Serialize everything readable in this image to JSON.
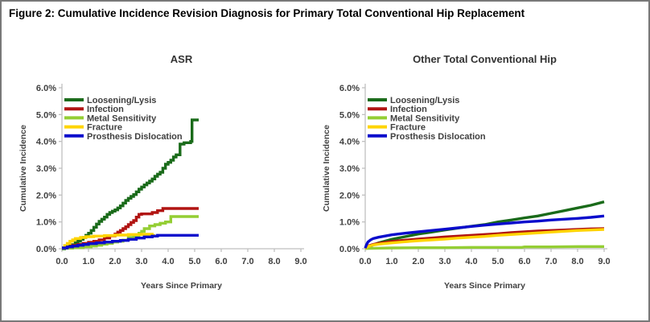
{
  "figure": {
    "title": "Figure 2: Cumulative Incidence Revision Diagnosis for Primary Total Conventional Hip Replacement"
  },
  "colors": {
    "axis": "#bfbfbf",
    "text": "#404040",
    "border": "#787878",
    "loosening_lysis": "#1a6b1a",
    "infection": "#b11412",
    "metal_sensitivity": "#94ce34",
    "fracture": "#ffd400",
    "prosthesis_dislocation": "#0a0ccc"
  },
  "chart_data": [
    {
      "type": "line",
      "interp": "step",
      "title": "ASR",
      "xlabel": "Years Since Primary",
      "ylabel": "Cumulative Incidence",
      "xlim": [
        0,
        9
      ],
      "ylim": [
        0,
        6
      ],
      "grid": false,
      "legend_position": "top-left",
      "xticks": [
        {
          "v": 0,
          "label": "0.0"
        },
        {
          "v": 1,
          "label": "1.0"
        },
        {
          "v": 2,
          "label": "2.0"
        },
        {
          "v": 3,
          "label": "3.0"
        },
        {
          "v": 4,
          "label": "4.0"
        },
        {
          "v": 5,
          "label": "5.0"
        },
        {
          "v": 6,
          "label": "6.0"
        },
        {
          "v": 7,
          "label": "7.0"
        },
        {
          "v": 8,
          "label": "8.0"
        },
        {
          "v": 9,
          "label": "9.0"
        }
      ],
      "yticks": [
        {
          "v": 0,
          "label": "0.0%"
        },
        {
          "v": 1,
          "label": "1.0%"
        },
        {
          "v": 2,
          "label": "2.0%"
        },
        {
          "v": 3,
          "label": "3.0%"
        },
        {
          "v": 4,
          "label": "4.0%"
        },
        {
          "v": 5,
          "label": "5.0%"
        },
        {
          "v": 6,
          "label": "6.0%"
        }
      ],
      "series": [
        {
          "name": "Loosening/Lysis",
          "color": "#1a6b1a",
          "points": [
            [
              0,
              0
            ],
            [
              0.1,
              0.05
            ],
            [
              0.2,
              0.1
            ],
            [
              0.35,
              0.15
            ],
            [
              0.5,
              0.22
            ],
            [
              0.6,
              0.28
            ],
            [
              0.7,
              0.35
            ],
            [
              0.8,
              0.42
            ],
            [
              0.9,
              0.5
            ],
            [
              1.0,
              0.58
            ],
            [
              1.1,
              0.68
            ],
            [
              1.2,
              0.8
            ],
            [
              1.3,
              0.92
            ],
            [
              1.4,
              1.02
            ],
            [
              1.5,
              1.1
            ],
            [
              1.6,
              1.18
            ],
            [
              1.7,
              1.28
            ],
            [
              1.8,
              1.35
            ],
            [
              1.9,
              1.4
            ],
            [
              2.0,
              1.45
            ],
            [
              2.1,
              1.52
            ],
            [
              2.2,
              1.6
            ],
            [
              2.3,
              1.7
            ],
            [
              2.4,
              1.8
            ],
            [
              2.5,
              1.88
            ],
            [
              2.6,
              1.95
            ],
            [
              2.7,
              2.02
            ],
            [
              2.8,
              2.12
            ],
            [
              2.9,
              2.22
            ],
            [
              3.0,
              2.3
            ],
            [
              3.1,
              2.38
            ],
            [
              3.2,
              2.45
            ],
            [
              3.3,
              2.52
            ],
            [
              3.4,
              2.6
            ],
            [
              3.5,
              2.7
            ],
            [
              3.6,
              2.78
            ],
            [
              3.7,
              2.85
            ],
            [
              3.8,
              3.0
            ],
            [
              3.9,
              3.15
            ],
            [
              4.0,
              3.22
            ],
            [
              4.1,
              3.3
            ],
            [
              4.2,
              3.42
            ],
            [
              4.3,
              3.5
            ],
            [
              4.45,
              3.9
            ],
            [
              4.6,
              3.95
            ],
            [
              4.85,
              4.0
            ],
            [
              4.9,
              4.8
            ],
            [
              5.15,
              4.8
            ]
          ]
        },
        {
          "name": "Infection",
          "color": "#b11412",
          "points": [
            [
              0,
              0.03
            ],
            [
              0.2,
              0.08
            ],
            [
              0.4,
              0.12
            ],
            [
              0.6,
              0.16
            ],
            [
              0.8,
              0.2
            ],
            [
              1.0,
              0.24
            ],
            [
              1.2,
              0.28
            ],
            [
              1.4,
              0.33
            ],
            [
              1.6,
              0.4
            ],
            [
              1.8,
              0.48
            ],
            [
              2.0,
              0.55
            ],
            [
              2.1,
              0.62
            ],
            [
              2.2,
              0.68
            ],
            [
              2.3,
              0.75
            ],
            [
              2.4,
              0.82
            ],
            [
              2.5,
              0.9
            ],
            [
              2.6,
              0.98
            ],
            [
              2.7,
              1.05
            ],
            [
              2.8,
              1.18
            ],
            [
              2.9,
              1.28
            ],
            [
              3.0,
              1.3
            ],
            [
              3.4,
              1.35
            ],
            [
              3.6,
              1.42
            ],
            [
              3.8,
              1.5
            ],
            [
              5.15,
              1.5
            ]
          ]
        },
        {
          "name": "Metal Sensitivity",
          "color": "#94ce34",
          "points": [
            [
              0,
              0.02
            ],
            [
              0.4,
              0.04
            ],
            [
              0.8,
              0.07
            ],
            [
              1.1,
              0.1
            ],
            [
              1.3,
              0.13
            ],
            [
              1.5,
              0.17
            ],
            [
              1.7,
              0.2
            ],
            [
              1.9,
              0.25
            ],
            [
              2.1,
              0.28
            ],
            [
              2.3,
              0.32
            ],
            [
              2.5,
              0.42
            ],
            [
              2.7,
              0.5
            ],
            [
              2.9,
              0.58
            ],
            [
              3.0,
              0.65
            ],
            [
              3.1,
              0.75
            ],
            [
              3.3,
              0.85
            ],
            [
              3.5,
              0.9
            ],
            [
              3.7,
              0.95
            ],
            [
              3.9,
              1.0
            ],
            [
              4.1,
              1.2
            ],
            [
              5.15,
              1.2
            ]
          ]
        },
        {
          "name": "Fracture",
          "color": "#ffd400",
          "points": [
            [
              0,
              0.03
            ],
            [
              0.1,
              0.12
            ],
            [
              0.2,
              0.2
            ],
            [
              0.3,
              0.28
            ],
            [
              0.4,
              0.33
            ],
            [
              0.5,
              0.38
            ],
            [
              0.7,
              0.42
            ],
            [
              0.9,
              0.45
            ],
            [
              1.2,
              0.47
            ],
            [
              1.6,
              0.49
            ],
            [
              2.0,
              0.51
            ],
            [
              2.5,
              0.53
            ],
            [
              3.0,
              0.54
            ],
            [
              3.45,
              0.55
            ]
          ]
        },
        {
          "name": "Prosthesis Dislocation",
          "color": "#0a0ccc",
          "points": [
            [
              0,
              0.03
            ],
            [
              0.2,
              0.07
            ],
            [
              0.4,
              0.1
            ],
            [
              0.6,
              0.13
            ],
            [
              0.8,
              0.16
            ],
            [
              1.0,
              0.19
            ],
            [
              1.3,
              0.22
            ],
            [
              1.6,
              0.25
            ],
            [
              1.9,
              0.28
            ],
            [
              2.2,
              0.31
            ],
            [
              2.5,
              0.35
            ],
            [
              2.8,
              0.4
            ],
            [
              3.1,
              0.44
            ],
            [
              3.4,
              0.47
            ],
            [
              3.6,
              0.5
            ],
            [
              5.15,
              0.5
            ]
          ]
        }
      ]
    },
    {
      "type": "line",
      "interp": "linear",
      "title": "Other Total Conventional Hip",
      "xlabel": "Years Since Primary",
      "ylabel": "Cumulative Incidence",
      "xlim": [
        0,
        9
      ],
      "ylim": [
        0,
        6
      ],
      "grid": false,
      "legend_position": "top-left",
      "xticks": [
        {
          "v": 0,
          "label": "0.0"
        },
        {
          "v": 1,
          "label": "1.0"
        },
        {
          "v": 2,
          "label": "2.0"
        },
        {
          "v": 3,
          "label": "3.0"
        },
        {
          "v": 4,
          "label": "4.0"
        },
        {
          "v": 5,
          "label": "5.0"
        },
        {
          "v": 6,
          "label": "6.0"
        },
        {
          "v": 7,
          "label": "7.0"
        },
        {
          "v": 8,
          "label": "8.0"
        },
        {
          "v": 9,
          "label": "9.0"
        }
      ],
      "yticks": [
        {
          "v": 0,
          "label": "0.0%"
        },
        {
          "v": 1,
          "label": "1.0%"
        },
        {
          "v": 2,
          "label": "2.0%"
        },
        {
          "v": 3,
          "label": "3.0%"
        },
        {
          "v": 4,
          "label": "4.0%"
        },
        {
          "v": 5,
          "label": "5.0%"
        },
        {
          "v": 6,
          "label": "6.0%"
        }
      ],
      "series": [
        {
          "name": "Loosening/Lysis",
          "color": "#1a6b1a",
          "points": [
            [
              0,
              0
            ],
            [
              0.2,
              0.1
            ],
            [
              0.5,
              0.22
            ],
            [
              1.0,
              0.35
            ],
            [
              1.5,
              0.45
            ],
            [
              2.0,
              0.55
            ],
            [
              2.5,
              0.62
            ],
            [
              3.0,
              0.7
            ],
            [
              3.5,
              0.77
            ],
            [
              4.0,
              0.84
            ],
            [
              4.5,
              0.9
            ],
            [
              5.0,
              1.0
            ],
            [
              5.5,
              1.07
            ],
            [
              6.0,
              1.15
            ],
            [
              6.5,
              1.22
            ],
            [
              7.0,
              1.32
            ],
            [
              7.5,
              1.42
            ],
            [
              8.0,
              1.52
            ],
            [
              8.5,
              1.62
            ],
            [
              9.0,
              1.75
            ]
          ]
        },
        {
          "name": "Infection",
          "color": "#b11412",
          "points": [
            [
              0,
              0.02
            ],
            [
              0.1,
              0.1
            ],
            [
              0.3,
              0.16
            ],
            [
              0.5,
              0.2
            ],
            [
              1.0,
              0.27
            ],
            [
              1.5,
              0.32
            ],
            [
              2.0,
              0.36
            ],
            [
              2.5,
              0.4
            ],
            [
              3.0,
              0.44
            ],
            [
              3.5,
              0.47
            ],
            [
              4.0,
              0.5
            ],
            [
              4.5,
              0.53
            ],
            [
              5.0,
              0.56
            ],
            [
              5.5,
              0.6
            ],
            [
              6.0,
              0.63
            ],
            [
              6.5,
              0.66
            ],
            [
              7.0,
              0.68
            ],
            [
              7.5,
              0.7
            ],
            [
              8.0,
              0.72
            ],
            [
              8.5,
              0.74
            ],
            [
              9.0,
              0.75
            ]
          ]
        },
        {
          "name": "Metal Sensitivity",
          "color": "#94ce34",
          "points": [
            [
              0,
              0.01
            ],
            [
              0.5,
              0.02
            ],
            [
              1.0,
              0.03
            ],
            [
              2.0,
              0.04
            ],
            [
              3.0,
              0.04
            ],
            [
              4.0,
              0.05
            ],
            [
              5.0,
              0.05
            ],
            [
              5.9,
              0.05
            ],
            [
              6.0,
              0.07
            ],
            [
              7.0,
              0.07
            ],
            [
              8.0,
              0.08
            ],
            [
              9.0,
              0.08
            ]
          ]
        },
        {
          "name": "Fracture",
          "color": "#ffd400",
          "points": [
            [
              0,
              0.01
            ],
            [
              0.1,
              0.08
            ],
            [
              0.3,
              0.14
            ],
            [
              0.5,
              0.17
            ],
            [
              1.0,
              0.22
            ],
            [
              1.5,
              0.26
            ],
            [
              2.0,
              0.3
            ],
            [
              2.5,
              0.33
            ],
            [
              3.0,
              0.36
            ],
            [
              3.5,
              0.4
            ],
            [
              4.0,
              0.43
            ],
            [
              4.5,
              0.46
            ],
            [
              5.0,
              0.5
            ],
            [
              5.5,
              0.53
            ],
            [
              6.0,
              0.56
            ],
            [
              6.5,
              0.59
            ],
            [
              7.0,
              0.62
            ],
            [
              7.5,
              0.65
            ],
            [
              8.0,
              0.68
            ],
            [
              8.5,
              0.7
            ],
            [
              9.0,
              0.72
            ]
          ]
        },
        {
          "name": "Prosthesis Dislocation",
          "color": "#0a0ccc",
          "points": [
            [
              0,
              0.02
            ],
            [
              0.05,
              0.15
            ],
            [
              0.1,
              0.25
            ],
            [
              0.2,
              0.33
            ],
            [
              0.3,
              0.38
            ],
            [
              0.5,
              0.43
            ],
            [
              1.0,
              0.52
            ],
            [
              1.5,
              0.58
            ],
            [
              2.0,
              0.63
            ],
            [
              2.5,
              0.68
            ],
            [
              3.0,
              0.73
            ],
            [
              3.5,
              0.78
            ],
            [
              4.0,
              0.83
            ],
            [
              4.5,
              0.88
            ],
            [
              5.0,
              0.92
            ],
            [
              5.5,
              0.96
            ],
            [
              6.0,
              1.0
            ],
            [
              6.5,
              1.03
            ],
            [
              7.0,
              1.07
            ],
            [
              7.5,
              1.1
            ],
            [
              8.0,
              1.13
            ],
            [
              8.5,
              1.17
            ],
            [
              9.0,
              1.22
            ]
          ]
        }
      ]
    }
  ]
}
